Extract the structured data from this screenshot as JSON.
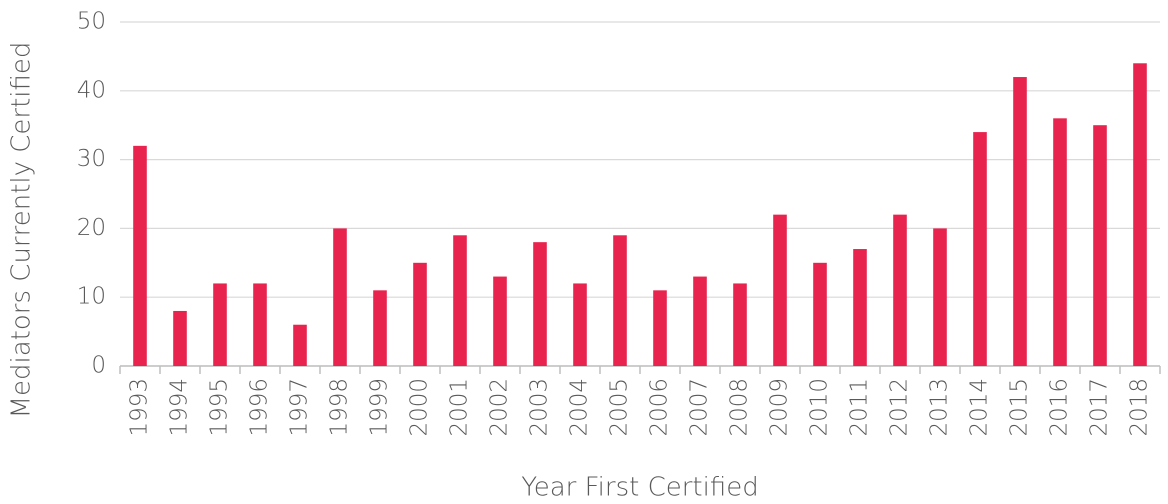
{
  "chart_data": {
    "type": "bar",
    "x_label": "Year First Certified",
    "y_label": "Mediators Currently Certified",
    "categories": [
      "1993",
      "1994",
      "1995",
      "1996",
      "1997",
      "1998",
      "1999",
      "2000",
      "2001",
      "2002",
      "2003",
      "2004",
      "2005",
      "2006",
      "2007",
      "2008",
      "2009",
      "2010",
      "2011",
      "2012",
      "2013",
      "2014",
      "2015",
      "2016",
      "2017",
      "2018"
    ],
    "values": [
      32,
      8,
      12,
      12,
      6,
      20,
      11,
      15,
      19,
      13,
      18,
      12,
      19,
      11,
      13,
      12,
      22,
      15,
      17,
      22,
      20,
      34,
      42,
      36,
      35,
      44
    ],
    "color": "#e8244e",
    "ylim": [
      0,
      50
    ],
    "yticks": [
      0,
      10,
      20,
      30,
      40,
      50
    ],
    "grid": true
  }
}
